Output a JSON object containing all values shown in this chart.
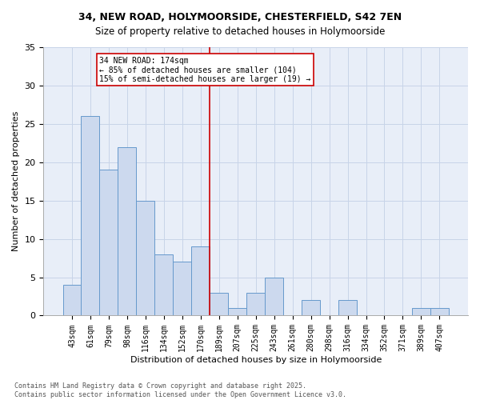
{
  "title": "34, NEW ROAD, HOLYMOORSIDE, CHESTERFIELD, S42 7EN",
  "subtitle": "Size of property relative to detached houses in Holymoorside",
  "xlabel": "Distribution of detached houses by size in Holymoorside",
  "ylabel": "Number of detached properties",
  "categories": [
    "43sqm",
    "61sqm",
    "79sqm",
    "98sqm",
    "116sqm",
    "134sqm",
    "152sqm",
    "170sqm",
    "189sqm",
    "207sqm",
    "225sqm",
    "243sqm",
    "261sqm",
    "280sqm",
    "298sqm",
    "316sqm",
    "334sqm",
    "352sqm",
    "371sqm",
    "389sqm",
    "407sqm"
  ],
  "values": [
    4,
    26,
    19,
    22,
    15,
    8,
    7,
    9,
    3,
    1,
    3,
    5,
    0,
    2,
    0,
    2,
    0,
    0,
    0,
    1,
    1
  ],
  "bar_color": "#ccd9ee",
  "bar_edge_color": "#6699cc",
  "vline_index": 7,
  "vline_color": "#cc0000",
  "annotation_text": "34 NEW ROAD: 174sqm\n← 85% of detached houses are smaller (104)\n15% of semi-detached houses are larger (19) →",
  "annotation_box_color": "#ffffff",
  "annotation_box_edge_color": "#cc0000",
  "ylim": [
    0,
    35
  ],
  "yticks": [
    0,
    5,
    10,
    15,
    20,
    25,
    30,
    35
  ],
  "footer_text": "Contains HM Land Registry data © Crown copyright and database right 2025.\nContains public sector information licensed under the Open Government Licence v3.0.",
  "background_color": "#ffffff",
  "ax_background": "#e8eef8",
  "grid_color": "#c8d4e8",
  "title_fontsize": 9,
  "subtitle_fontsize": 8.5,
  "tick_fontsize": 7,
  "label_fontsize": 8,
  "annotation_fontsize": 7,
  "ylabel_fontsize": 8
}
